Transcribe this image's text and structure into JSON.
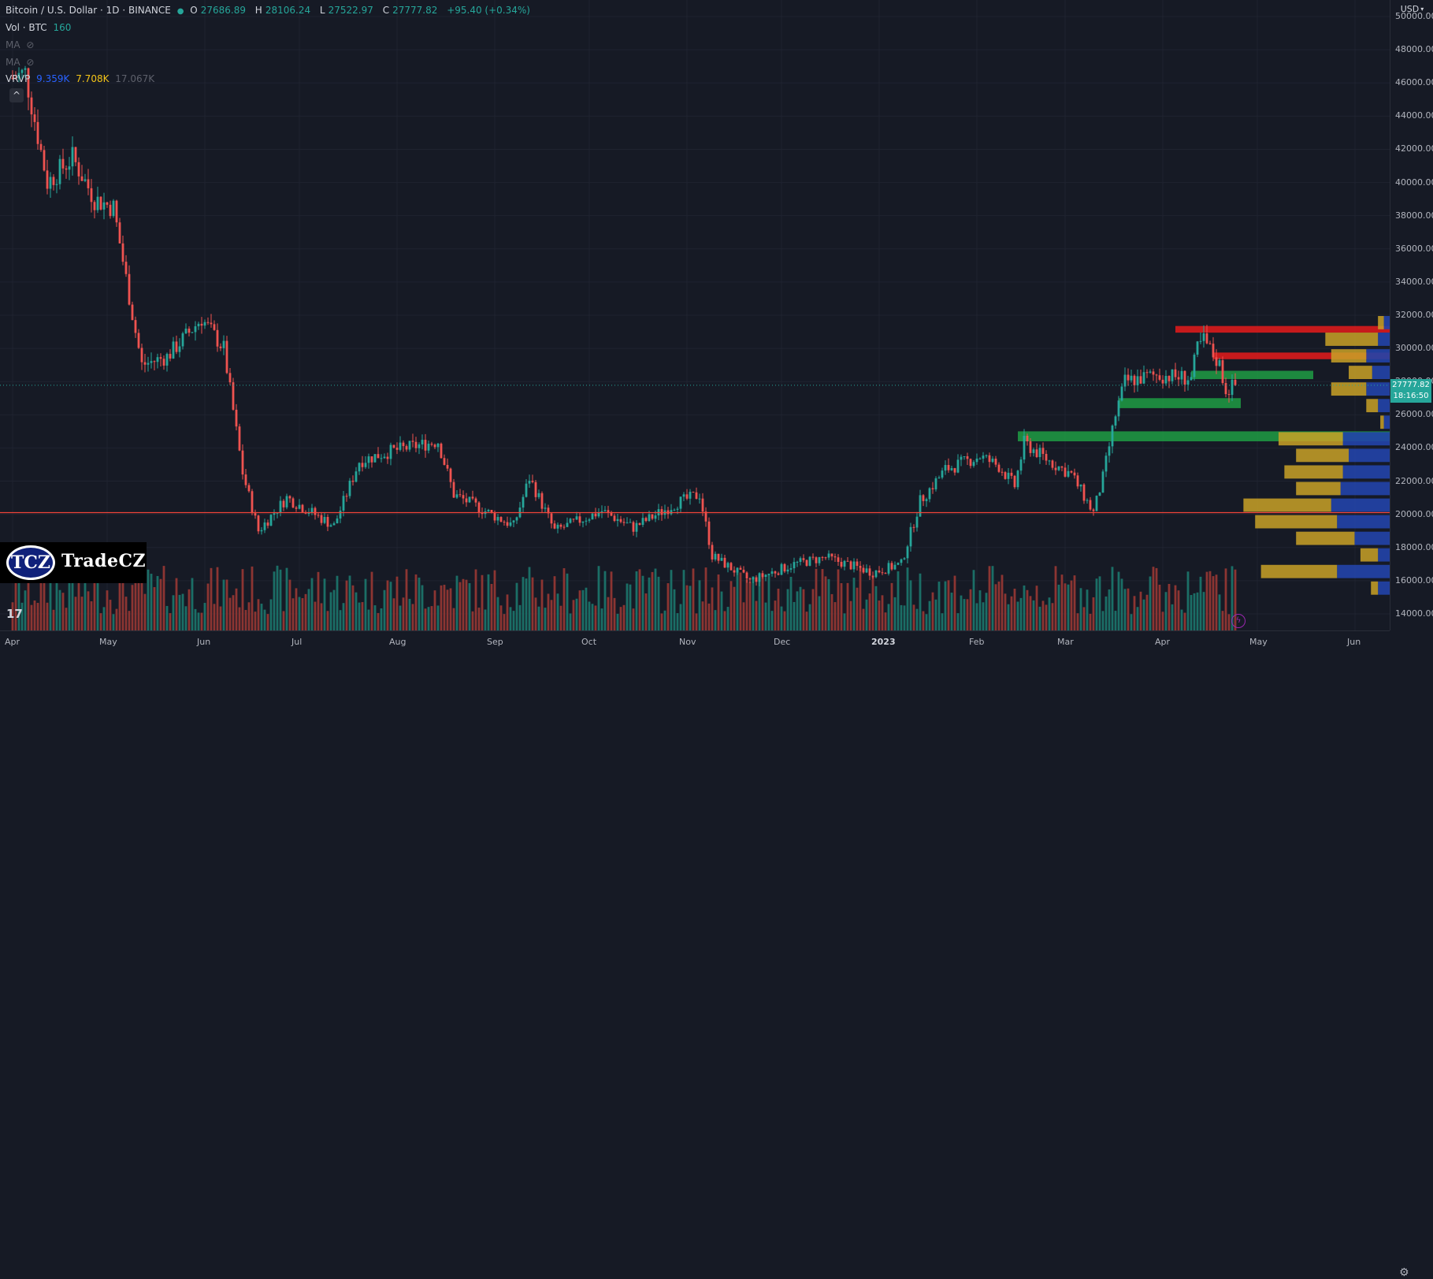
{
  "legend": {
    "symbol": "Bitcoin / U.S. Dollar · 1D · BINANCE",
    "open_label": "O",
    "open": "27686.89",
    "high_label": "H",
    "high": "28106.24",
    "low_label": "L",
    "low": "27522.97",
    "close_label": "C",
    "close": "27777.82",
    "change": "+95.40 (+0.34%)",
    "vol_label": "Vol · BTC",
    "vol_value": "160",
    "ma1_label": "MA",
    "ma2_label": "MA",
    "vrvp_label": "VRVP",
    "vrvp_up": "9.359K",
    "vrvp_down": "7.708K",
    "vrvp_total": "17.067K"
  },
  "price_axis": {
    "currency": "USD",
    "ticks": [
      "50000.00",
      "48000.00",
      "46000.00",
      "44000.00",
      "42000.00",
      "40000.00",
      "38000.00",
      "36000.00",
      "34000.00",
      "32000.00",
      "30000.00",
      "28000.00",
      "26000.00",
      "24000.00",
      "22000.00",
      "20000.00",
      "18000.00",
      "16000.00",
      "14000.00"
    ],
    "last_price": "27777.82",
    "countdown": "18:16:50"
  },
  "time_axis": {
    "labels": [
      "Apr",
      "May",
      "Jun",
      "Jul",
      "Aug",
      "Sep",
      "Oct",
      "Nov",
      "Dec",
      "2023",
      "Feb",
      "Mar",
      "Apr",
      "May",
      "Jun"
    ]
  },
  "watermark": {
    "circle_text": "TCZ",
    "brand_text": "TradeCZ"
  },
  "tv_logo": "17",
  "colors": {
    "bull": "#26a69a",
    "bear": "#ef5350",
    "resistance": "#e51b1b",
    "support": "#1f9d44",
    "vp_up": "#2244aa",
    "vp_down": "#c9a227",
    "background": "#161a25"
  },
  "chart_data": {
    "type": "candlestick",
    "title": "Bitcoin / U.S. Dollar · 1D · BINANCE",
    "xlabel": "",
    "ylabel": "",
    "ylim": [
      13000,
      51000
    ],
    "x_range": [
      "2022-03-28",
      "2023-06-12"
    ],
    "price_path": [
      {
        "date": "2022-04-01",
        "price": 46300
      },
      {
        "date": "2022-04-05",
        "price": 46600
      },
      {
        "date": "2022-04-12",
        "price": 40000
      },
      {
        "date": "2022-04-20",
        "price": 41500
      },
      {
        "date": "2022-04-27",
        "price": 39000
      },
      {
        "date": "2022-05-03",
        "price": 38500
      },
      {
        "date": "2022-05-10",
        "price": 31000
      },
      {
        "date": "2022-05-12",
        "price": 29000
      },
      {
        "date": "2022-05-20",
        "price": 29500
      },
      {
        "date": "2022-05-31",
        "price": 31800
      },
      {
        "date": "2022-06-07",
        "price": 30000
      },
      {
        "date": "2022-06-13",
        "price": 22500
      },
      {
        "date": "2022-06-18",
        "price": 19000
      },
      {
        "date": "2022-06-27",
        "price": 21000
      },
      {
        "date": "2022-07-05",
        "price": 20100
      },
      {
        "date": "2022-07-12",
        "price": 19300
      },
      {
        "date": "2022-07-20",
        "price": 23200
      },
      {
        "date": "2022-07-30",
        "price": 23800
      },
      {
        "date": "2022-08-14",
        "price": 24400
      },
      {
        "date": "2022-08-19",
        "price": 21200
      },
      {
        "date": "2022-08-31",
        "price": 20000
      },
      {
        "date": "2022-09-07",
        "price": 19300
      },
      {
        "date": "2022-09-12",
        "price": 22200
      },
      {
        "date": "2022-09-20",
        "price": 19000
      },
      {
        "date": "2022-10-05",
        "price": 20200
      },
      {
        "date": "2022-10-15",
        "price": 19200
      },
      {
        "date": "2022-10-29",
        "price": 20700
      },
      {
        "date": "2022-11-05",
        "price": 21200
      },
      {
        "date": "2022-11-09",
        "price": 17500
      },
      {
        "date": "2022-11-21",
        "price": 16000
      },
      {
        "date": "2022-12-05",
        "price": 17000
      },
      {
        "date": "2022-12-15",
        "price": 17400
      },
      {
        "date": "2022-12-30",
        "price": 16500
      },
      {
        "date": "2023-01-08",
        "price": 17000
      },
      {
        "date": "2023-01-14",
        "price": 20800
      },
      {
        "date": "2023-01-22",
        "price": 22700
      },
      {
        "date": "2023-02-02",
        "price": 23500
      },
      {
        "date": "2023-02-08",
        "price": 22900
      },
      {
        "date": "2023-02-13",
        "price": 21700
      },
      {
        "date": "2023-02-16",
        "price": 24300
      },
      {
        "date": "2023-02-24",
        "price": 23200
      },
      {
        "date": "2023-03-03",
        "price": 22400
      },
      {
        "date": "2023-03-10",
        "price": 20100
      },
      {
        "date": "2023-03-13",
        "price": 22200
      },
      {
        "date": "2023-03-17",
        "price": 26000
      },
      {
        "date": "2023-03-20",
        "price": 28000
      },
      {
        "date": "2023-03-30",
        "price": 28400
      },
      {
        "date": "2023-04-10",
        "price": 28200
      },
      {
        "date": "2023-04-12",
        "price": 30000
      },
      {
        "date": "2023-04-14",
        "price": 30500
      },
      {
        "date": "2023-04-19",
        "price": 29000
      },
      {
        "date": "2023-04-21",
        "price": 27500
      },
      {
        "date": "2023-04-24",
        "price": 27778
      }
    ],
    "horizontal_lines": [
      {
        "kind": "line",
        "price": 20100,
        "color": "#f0443a"
      },
      {
        "kind": "dotted",
        "price": 27778,
        "color": "#26a69a"
      }
    ],
    "zones": [
      {
        "kind": "resistance",
        "from_date": "2023-04-05",
        "price_low": 30950,
        "price_high": 31350
      },
      {
        "kind": "resistance",
        "from_date": "2023-04-17",
        "price_low": 29350,
        "price_high": 29750
      },
      {
        "kind": "support",
        "from_date": "2023-04-10",
        "price_low": 28150,
        "price_high": 28650
      },
      {
        "kind": "support",
        "from_date": "2023-03-18",
        "price_low": 26400,
        "price_high": 27000
      },
      {
        "kind": "support",
        "from_date": "2023-02-14",
        "price_low": 24400,
        "price_high": 25000
      }
    ],
    "volume_profile": {
      "bin_size": 1000,
      "bins": [
        {
          "price": 31500,
          "up": 0.05,
          "down": 0.05
        },
        {
          "price": 30500,
          "up": 0.1,
          "down": 0.45
        },
        {
          "price": 29500,
          "up": 0.2,
          "down": 0.3
        },
        {
          "price": 28500,
          "up": 0.15,
          "down": 0.2
        },
        {
          "price": 27500,
          "up": 0.2,
          "down": 0.3
        },
        {
          "price": 26500,
          "up": 0.1,
          "down": 0.1
        },
        {
          "price": 25500,
          "up": 0.05,
          "down": 0.03
        },
        {
          "price": 24500,
          "up": 0.4,
          "down": 0.55
        },
        {
          "price": 23500,
          "up": 0.35,
          "down": 0.45
        },
        {
          "price": 22500,
          "up": 0.4,
          "down": 0.5
        },
        {
          "price": 21500,
          "up": 0.42,
          "down": 0.38
        },
        {
          "price": 20500,
          "up": 0.5,
          "down": 0.75
        },
        {
          "price": 19500,
          "up": 0.45,
          "down": 0.7
        },
        {
          "price": 18500,
          "up": 0.3,
          "down": 0.5
        },
        {
          "price": 17500,
          "up": 0.1,
          "down": 0.15
        },
        {
          "price": 16500,
          "up": 0.45,
          "down": 0.65
        },
        {
          "price": 15500,
          "up": 0.1,
          "down": 0.06
        }
      ]
    }
  }
}
